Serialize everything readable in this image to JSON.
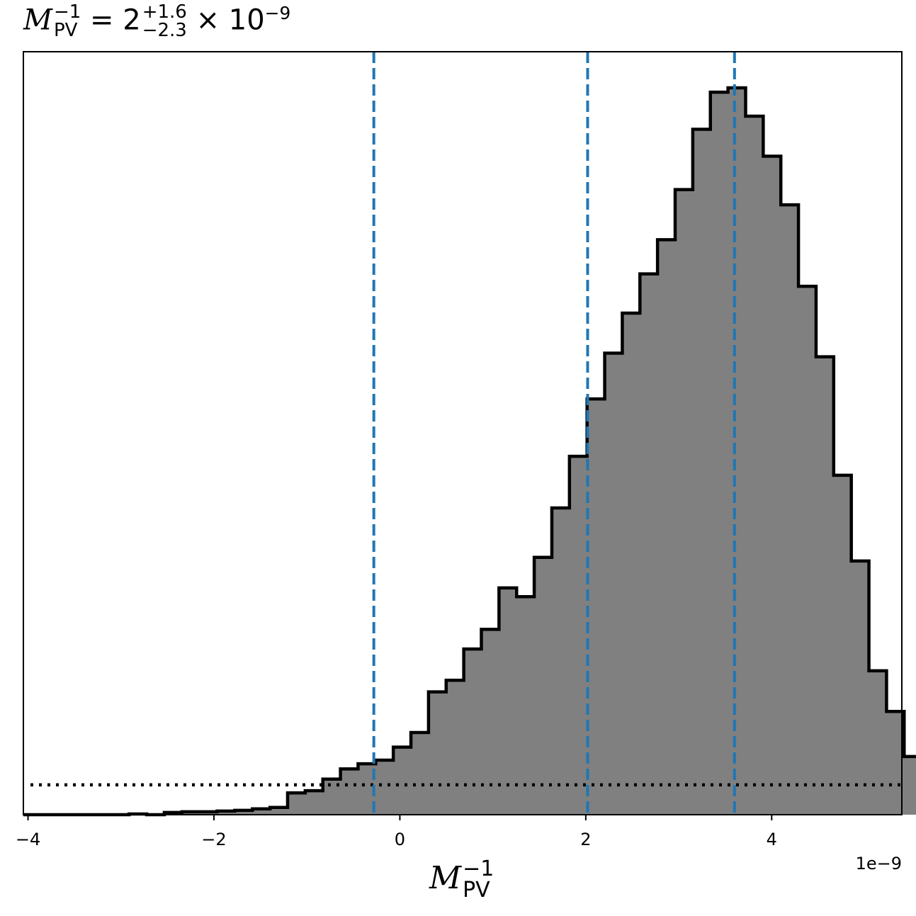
{
  "title": {
    "symbol": "M",
    "sub": "PV",
    "sup": "−1",
    "equals": "=",
    "base": "2",
    "plus": "+1.6",
    "minus": "−2.3",
    "times": "× 10",
    "exp": "−9"
  },
  "axis": {
    "x_symbol": "M",
    "x_sub": "PV",
    "x_sup": "−1",
    "offset_text": "1e−9"
  },
  "chart_data": {
    "type": "histogram",
    "xlim": [
      -4.05,
      5.4
    ],
    "ylim": [
      0,
      1.0
    ],
    "y_axis_visible": false,
    "x_ticks": [
      {
        "value": -4,
        "label": "−4"
      },
      {
        "value": -2,
        "label": "−2"
      },
      {
        "value": 0,
        "label": "0"
      },
      {
        "value": 2,
        "label": "2"
      },
      {
        "value": 4,
        "label": "4"
      }
    ],
    "bin_start": -4.05,
    "bin_width": 0.1895,
    "counts": [
      0.0,
      0.0,
      0.0,
      0.0,
      0.0,
      0.0,
      0.001,
      0.0,
      0.003,
      0.004,
      0.004,
      0.005,
      0.006,
      0.008,
      0.01,
      0.03,
      0.033,
      0.049,
      0.063,
      0.07,
      0.075,
      0.093,
      0.113,
      0.169,
      0.185,
      0.228,
      0.255,
      0.312,
      0.3,
      0.354,
      0.422,
      0.493,
      0.572,
      0.635,
      0.69,
      0.744,
      0.791,
      0.86,
      0.943,
      0.994,
      1.0,
      0.961,
      0.906,
      0.839,
      0.727,
      0.63,
      0.467,
      0.349,
      0.198,
      0.142,
      0.08,
      0.062,
      0.044,
      0.025,
      0.01,
      0.0
    ],
    "quantile_lines": {
      "values": [
        -0.28,
        2.02,
        3.6
      ],
      "color": "#1f77b4",
      "style": "dashed"
    },
    "reference_line": {
      "y": 0.041,
      "color": "#000000",
      "style": "dotted"
    },
    "fill_color": "#808080",
    "edge_color": "#000000"
  }
}
